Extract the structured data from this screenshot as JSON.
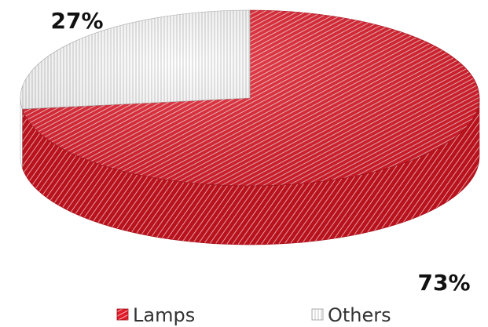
{
  "chart_data": {
    "type": "pie",
    "style": "3d",
    "categories": [
      "Lamps",
      "Others"
    ],
    "values": [
      73,
      27
    ],
    "data_labels": [
      "73%",
      "27%"
    ],
    "colors": [
      "#e01b2a",
      "#ffffff"
    ],
    "legend_position": "bottom",
    "title": ""
  }
}
